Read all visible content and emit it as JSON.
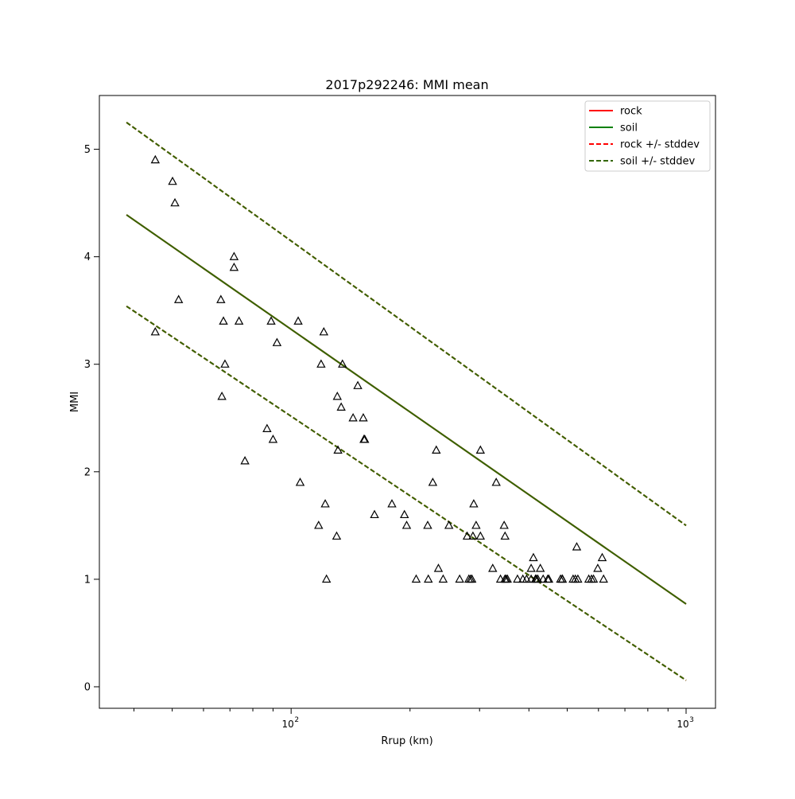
{
  "chart_data": {
    "type": "scatter",
    "title": "2017p292246: MMI mean",
    "xlabel": "Rrup (km)",
    "ylabel": "MMI",
    "x_scale": "log",
    "xlim": [
      32.7,
      1187
    ],
    "ylim": [
      -0.2,
      5.5
    ],
    "x_ticks": [
      {
        "value": 100,
        "label": "10",
        "sup": "2"
      },
      {
        "value": 1000,
        "label": "10",
        "sup": "3"
      }
    ],
    "y_ticks": [
      0,
      1,
      2,
      3,
      4,
      5
    ],
    "grid": false,
    "legend_position": "upper right",
    "colors": {
      "rock": "#ff0000",
      "soil": "#008000",
      "overlay": "#336600",
      "points": "#000000"
    },
    "legend": [
      {
        "label": "rock",
        "color": "#ff0000",
        "dashed": false
      },
      {
        "label": "soil",
        "color": "#008000",
        "dashed": false
      },
      {
        "label": "rock +/- stddev",
        "color": "#ff0000",
        "dashed": true
      },
      {
        "label": "soil +/- stddev",
        "color": "#336600",
        "dashed": true
      }
    ],
    "series": [
      {
        "name": "rock",
        "style": "solid",
        "x": [
          38.3,
          1000
        ],
        "y": [
          4.39,
          0.77
        ]
      },
      {
        "name": "soil",
        "style": "solid",
        "x": [
          38.3,
          1000
        ],
        "y": [
          4.39,
          0.77
        ]
      },
      {
        "name": "rock +/- stddev",
        "style": "dashed",
        "x": [
          38.3,
          1000
        ],
        "y": [
          5.25,
          1.5
        ]
      },
      {
        "name": "rock +/- stddev",
        "style": "dashed",
        "x": [
          38.3,
          1000
        ],
        "y": [
          3.54,
          0.06
        ]
      },
      {
        "name": "soil +/- stddev",
        "style": "dashed",
        "x": [
          38.3,
          1000
        ],
        "y": [
          5.25,
          1.5
        ]
      },
      {
        "name": "soil +/- stddev",
        "style": "dashed",
        "x": [
          38.3,
          1000
        ],
        "y": [
          3.54,
          0.06
        ]
      }
    ],
    "points": [
      [
        45.3,
        4.9
      ],
      [
        45.3,
        3.3
      ],
      [
        50.1,
        4.7
      ],
      [
        50.8,
        4.5
      ],
      [
        51.9,
        3.6
      ],
      [
        66.4,
        3.6
      ],
      [
        67.4,
        3.4
      ],
      [
        68.0,
        3.0
      ],
      [
        66.8,
        2.7
      ],
      [
        71.7,
        4.0
      ],
      [
        71.7,
        3.9
      ],
      [
        73.8,
        3.4
      ],
      [
        76.4,
        2.1
      ],
      [
        86.9,
        2.4
      ],
      [
        89.0,
        3.4
      ],
      [
        90.0,
        2.3
      ],
      [
        92.1,
        3.2
      ],
      [
        104.2,
        3.4
      ],
      [
        105.4,
        1.9
      ],
      [
        117.4,
        1.5
      ],
      [
        119.1,
        3.0
      ],
      [
        121.0,
        3.3
      ],
      [
        122.0,
        1.7
      ],
      [
        122.9,
        1.0
      ],
      [
        130.4,
        1.4
      ],
      [
        131.4,
        2.2
      ],
      [
        130.9,
        2.7
      ],
      [
        133.9,
        2.6
      ],
      [
        134.9,
        3.0
      ],
      [
        143.5,
        2.5
      ],
      [
        147.5,
        2.8
      ],
      [
        152.3,
        2.5
      ],
      [
        152.9,
        2.3
      ],
      [
        153.6,
        2.3
      ],
      [
        162.6,
        1.6
      ],
      [
        180.0,
        1.7
      ],
      [
        193.6,
        1.6
      ],
      [
        196.1,
        1.5
      ],
      [
        207.3,
        1.0
      ],
      [
        222.5,
        1.0
      ],
      [
        221.7,
        1.5
      ],
      [
        228.4,
        1.9
      ],
      [
        233.1,
        2.2
      ],
      [
        236.0,
        1.1
      ],
      [
        242.6,
        1.0
      ],
      [
        250.9,
        1.5
      ],
      [
        267.1,
        1.0
      ],
      [
        279.1,
        1.4
      ],
      [
        281.8,
        1.0
      ],
      [
        284.5,
        1.0
      ],
      [
        286.9,
        1.0
      ],
      [
        288.6,
        1.4
      ],
      [
        290.0,
        1.7
      ],
      [
        294.0,
        1.5
      ],
      [
        301.5,
        1.4
      ],
      [
        301.5,
        2.2
      ],
      [
        323.9,
        1.1
      ],
      [
        330.6,
        1.9
      ],
      [
        338.9,
        1.0
      ],
      [
        346.2,
        1.5
      ],
      [
        348.0,
        1.4
      ],
      [
        347.8,
        1.0
      ],
      [
        350.2,
        1.0
      ],
      [
        352.9,
        1.0
      ],
      [
        374.2,
        1.0
      ],
      [
        386.1,
        1.0
      ],
      [
        394.6,
        1.0
      ],
      [
        405.2,
        1.0
      ],
      [
        405.2,
        1.1
      ],
      [
        410.6,
        1.2
      ],
      [
        415.5,
        1.0
      ],
      [
        417.8,
        1.0
      ],
      [
        421.2,
        1.0
      ],
      [
        427.5,
        1.1
      ],
      [
        434.6,
        1.0
      ],
      [
        446.3,
        1.0
      ],
      [
        449.2,
        1.0
      ],
      [
        481.0,
        1.0
      ],
      [
        485.6,
        1.0
      ],
      [
        486.4,
        1.0
      ],
      [
        517.5,
        1.0
      ],
      [
        524.3,
        1.0
      ],
      [
        528.6,
        1.3
      ],
      [
        532.1,
        1.0
      ],
      [
        567.0,
        1.0
      ],
      [
        576.1,
        1.0
      ],
      [
        582.9,
        1.0
      ],
      [
        597.5,
        1.1
      ],
      [
        613.2,
        1.2
      ],
      [
        618.1,
        1.0
      ]
    ]
  }
}
